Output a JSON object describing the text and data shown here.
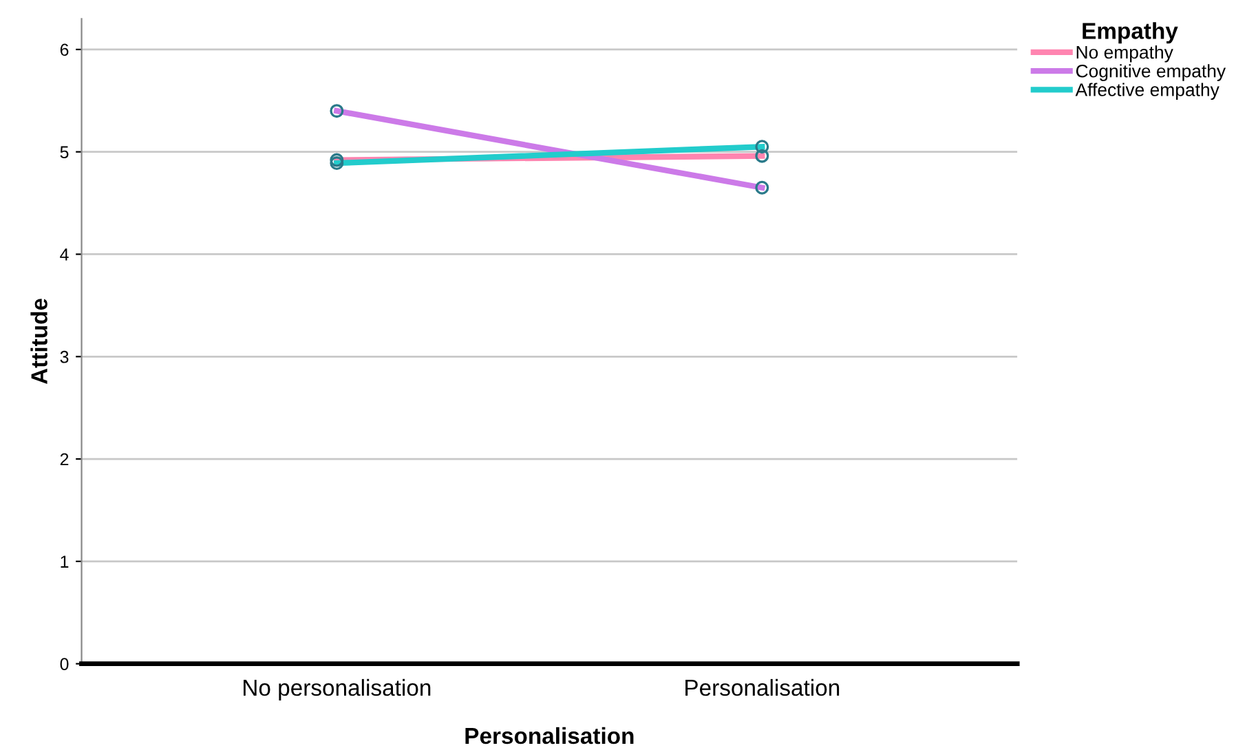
{
  "chart_data": {
    "type": "line",
    "xlabel": "Personalisation",
    "ylabel": "Attitude",
    "legend_title": "Empathy",
    "categories": [
      "No personalisation",
      "Personalisation"
    ],
    "series": [
      {
        "name": "No empathy",
        "color": "#ff85b0",
        "values": [
          4.92,
          4.96
        ]
      },
      {
        "name": "Cognitive empathy",
        "color": "#cc7ae8",
        "values": [
          5.4,
          4.65
        ]
      },
      {
        "name": "Affective empathy",
        "color": "#22cccc",
        "values": [
          4.89,
          5.05
        ]
      }
    ],
    "ylim": [
      0,
      6.3
    ],
    "yticks": [
      0,
      1,
      2,
      3,
      4,
      5,
      6
    ],
    "grid": "y",
    "legend": "top right",
    "marker": "circle",
    "line_style": "solid"
  }
}
